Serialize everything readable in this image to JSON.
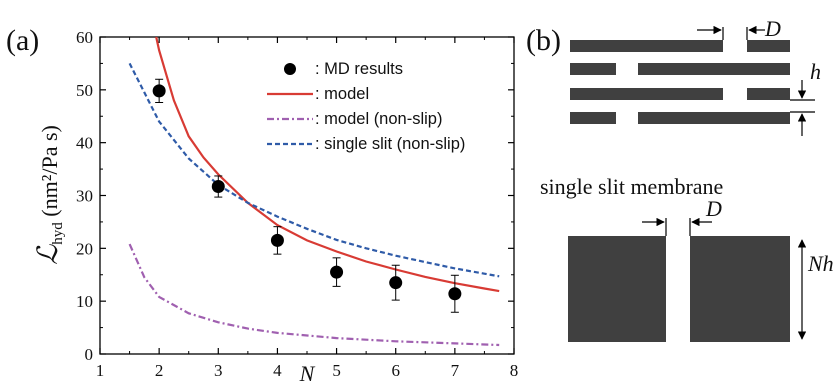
{
  "panel_a_label": "(a)",
  "panel_b_label": "(b)",
  "chart_data": {
    "type": "line",
    "xlabel": "N",
    "ylabel_main": "ℒ",
    "ylabel_sub": "hyd",
    "ylabel_rest": " (nm²/Pa s)",
    "xlim": [
      1,
      8
    ],
    "ylim": [
      0,
      60
    ],
    "xticks": [
      "1",
      "2",
      "3",
      "4",
      "5",
      "6",
      "7",
      "8"
    ],
    "yticks": [
      "0",
      "10",
      "20",
      "30",
      "40",
      "50",
      "60"
    ],
    "grid": false,
    "legend_position": "top-right",
    "series": [
      {
        "name": ": MD results",
        "kind": "scatter",
        "color": "#000000",
        "x": [
          2,
          3,
          4,
          5,
          6,
          7
        ],
        "y": [
          49.8,
          31.7,
          21.5,
          15.5,
          13.5,
          11.4
        ],
        "err": [
          2.2,
          2.0,
          2.6,
          2.7,
          3.3,
          3.5
        ]
      },
      {
        "name": ": model",
        "kind": "line",
        "dash": "solid",
        "color": "#d83b34",
        "x": [
          1.95,
          2.0,
          2.25,
          2.5,
          2.75,
          3.0,
          3.5,
          4.0,
          4.5,
          5.0,
          5.5,
          6.0,
          6.5,
          7.0,
          7.5,
          7.75
        ],
        "y": [
          60,
          57.5,
          48.0,
          41.2,
          37.2,
          34.0,
          28.6,
          24.4,
          21.5,
          19.4,
          17.5,
          16.0,
          14.6,
          13.4,
          12.4,
          11.9
        ]
      },
      {
        "name": ": model (non-slip)",
        "kind": "line",
        "dash": "dashdot",
        "color": "#a060b0",
        "x": [
          1.5,
          1.75,
          2.0,
          2.5,
          3.0,
          3.5,
          4.0,
          5.0,
          6.0,
          7.0,
          7.75
        ],
        "y": [
          20.8,
          14.5,
          10.8,
          7.7,
          6.0,
          4.8,
          4.0,
          3.0,
          2.4,
          2.0,
          1.7
        ]
      },
      {
        "name": ": single slit (non-slip)",
        "kind": "line",
        "dash": "dashed",
        "color": "#2f5ba8",
        "x": [
          1.5,
          2.0,
          2.5,
          3.0,
          3.5,
          4.0,
          4.5,
          5.0,
          5.5,
          6.0,
          6.5,
          7.0,
          7.5,
          7.75
        ],
        "y": [
          55.0,
          44.0,
          37.0,
          32.0,
          28.6,
          26.0,
          23.7,
          21.6,
          20.0,
          18.6,
          17.4,
          16.2,
          15.2,
          14.7
        ]
      }
    ]
  },
  "diagram": {
    "label_D_top": "D",
    "label_h": "h",
    "membrane_title": "single slit membrane",
    "label_D_bottom": "D",
    "label_Nh": "Nh",
    "fill_color": "#404040"
  }
}
